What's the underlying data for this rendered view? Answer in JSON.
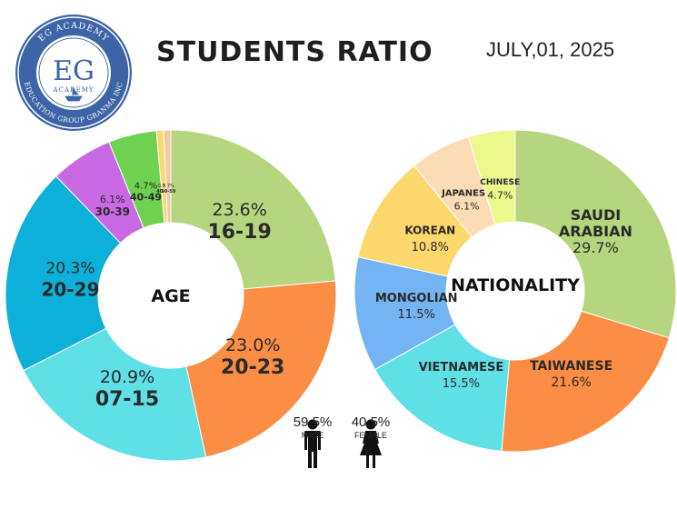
{
  "header": {
    "title": "STUDENTS RATIO",
    "date": "JULY,01, 2025"
  },
  "logo": {
    "initials": "EG",
    "top_text": "EG ACADEMY",
    "middle_text": "ACADEMY",
    "bottom_text": "EDUCATION GROUP GRANMA INC"
  },
  "chart_data": [
    {
      "type": "pie",
      "center_label": "AGE",
      "unit": "%",
      "slices": [
        {
          "label": "16-19",
          "value": 23.6,
          "color": "#b5d67e"
        },
        {
          "label": "20-23",
          "value": 23.0,
          "color": "#fb8d45"
        },
        {
          "label": "07-15",
          "value": 20.9,
          "color": "#5ee0e6"
        },
        {
          "label": "20-29",
          "value": 20.3,
          "color": "#0db0d8"
        },
        {
          "label": "30-39",
          "value": 6.1,
          "color": "#c869e3"
        },
        {
          "label": "40-49",
          "value": 4.7,
          "color": "#6fd150"
        },
        {
          "label": "40-49",
          "value": 0.7,
          "color": "#fdd86c"
        },
        {
          "label": "50-59",
          "value": 0.7,
          "color": "#f2c9a8"
        }
      ]
    },
    {
      "type": "pie",
      "center_label": "NATIONALITY",
      "unit": "%",
      "slices": [
        {
          "label": "SAUDI ARABIAN",
          "value": 29.7,
          "color": "#b5d67e"
        },
        {
          "label": "TAIWANESE",
          "value": 21.6,
          "color": "#fb8d45"
        },
        {
          "label": "VIETNAMESE",
          "value": 15.5,
          "color": "#5ee0e6"
        },
        {
          "label": "MONGOLIAN",
          "value": 11.5,
          "color": "#74b4f2"
        },
        {
          "label": "KOREAN",
          "value": 10.8,
          "color": "#fdd86c"
        },
        {
          "label": "JAPANESE",
          "value": 6.1,
          "color": "#fbdcb5"
        },
        {
          "label": "CHINESE",
          "value": 4.7,
          "color": "#ecf98d"
        }
      ]
    }
  ],
  "gender": {
    "male": {
      "pct": "59.5%",
      "label": "MALE"
    },
    "female": {
      "pct": "40.5%",
      "label": "FEMALE"
    }
  }
}
